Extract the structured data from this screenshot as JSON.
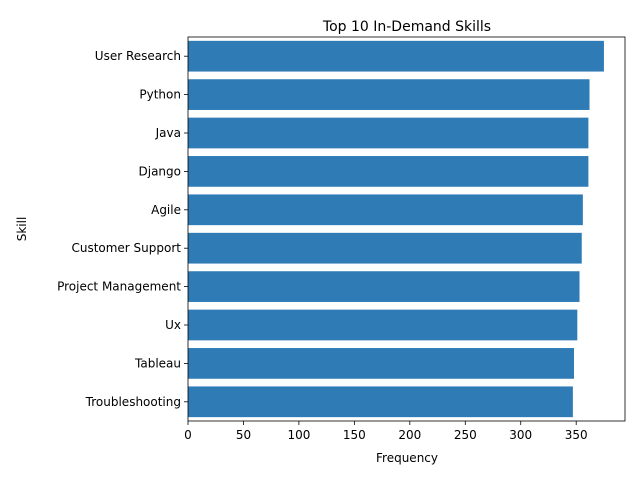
{
  "chart_data": {
    "type": "bar",
    "orientation": "horizontal",
    "title": "Top 10 In-Demand Skills",
    "xlabel": "Frequency",
    "ylabel": "Skill",
    "categories": [
      "User Research",
      "Python",
      "Java",
      "Django",
      "Agile",
      "Customer Support",
      "Project Management",
      "Ux",
      "Tableau",
      "Troubleshooting"
    ],
    "values": [
      375,
      362,
      361,
      361,
      356,
      355,
      353,
      351,
      348,
      347
    ],
    "xlim": [
      0,
      394
    ],
    "xticks": [
      0,
      50,
      100,
      150,
      200,
      250,
      300,
      350
    ],
    "grid": false,
    "bar_color": "#2f7bb5"
  }
}
